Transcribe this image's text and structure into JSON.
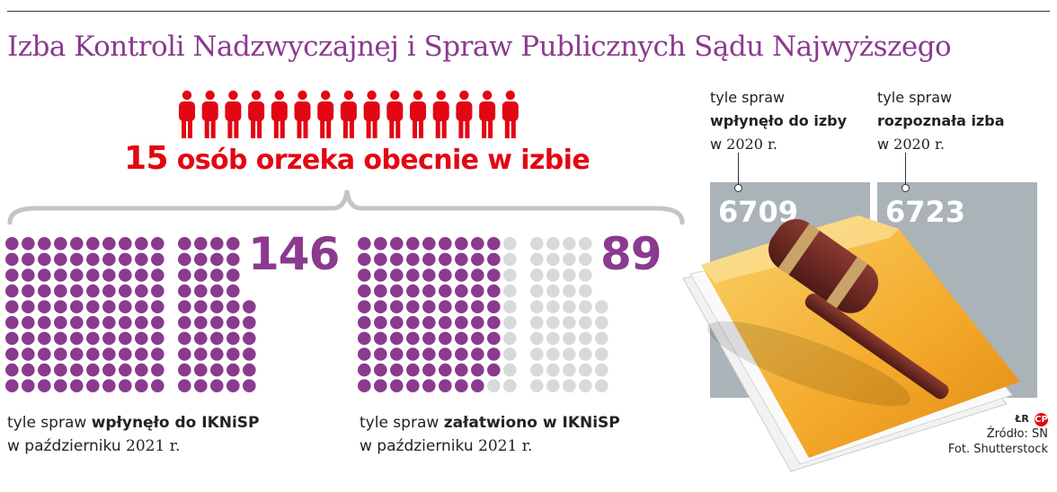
{
  "title": "Izba Kontroli Nadzwyczajnej i Spraw Publicznych Sądu Najwyższego",
  "judges": {
    "count": "15",
    "label": "osób orzeka obecnie w izbie"
  },
  "chart_data": [
    {
      "type": "table",
      "title": "osób orzeka obecnie w izbie",
      "values": [
        15
      ]
    },
    {
      "type": "table",
      "value": 146,
      "label": [
        "tyle spraw",
        "wpłynęło do IKNiSP",
        "w październiku 2021 r."
      ]
    },
    {
      "type": "table",
      "value": 89,
      "total": 146,
      "label": [
        "tyle spraw",
        "załatwiono w IKNiSP",
        "w październiku 2021 r."
      ]
    },
    {
      "type": "table",
      "categories": [
        "wpłynęło do izby",
        "rozpoznała izba"
      ],
      "values": [
        6709,
        6723
      ],
      "year": "2020"
    }
  ],
  "monthly": {
    "received": {
      "value": "146",
      "line1": "tyle spraw ",
      "bold": "wpłynęło do IKNiSP",
      "line2": "w październiku ",
      "year": "2021 r."
    },
    "resolved": {
      "value": "89",
      "line1": "tyle spraw ",
      "bold": "załatwiono w IKNiSP",
      "line2": "w październiku ",
      "year": "2021 r."
    }
  },
  "yearly": {
    "received": {
      "line1": "tyle spraw",
      "bold": "wpłynęło do izby",
      "line3_pre": "w ",
      "year": "2020 r.",
      "value": "6709"
    },
    "recognized": {
      "line1": "tyle spraw",
      "bold": "rozpoznała izba",
      "line3_pre": "w ",
      "year": "2020 r.",
      "value": "6723"
    }
  },
  "credits": {
    "author": "ŁR",
    "logo": "CP",
    "source": "Źródło: SN",
    "photo": "Fot. Shutterstock"
  },
  "colors": {
    "title": "#8b3a8f",
    "accent": "#e30613",
    "dot": "#8b3a8f",
    "dot_empty": "#d9d9d9",
    "box": "#aab3b8"
  }
}
